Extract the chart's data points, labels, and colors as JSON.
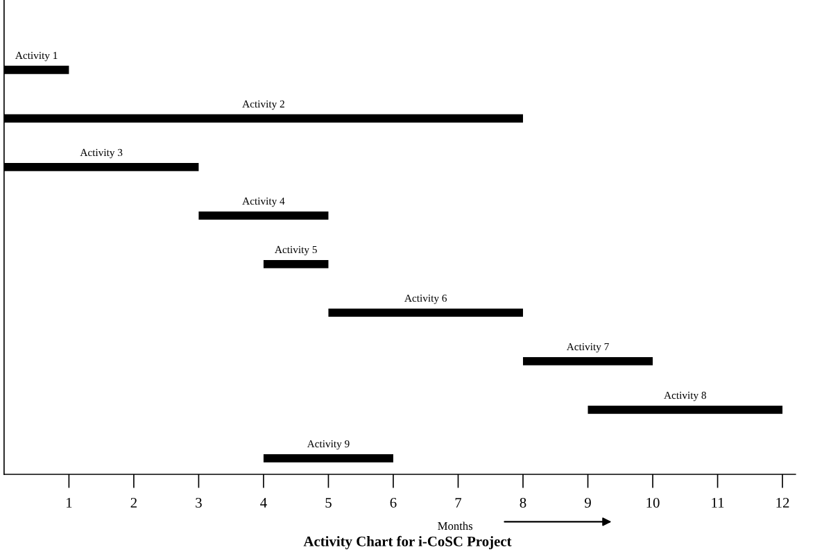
{
  "chart_data": {
    "type": "bar",
    "orientation": "horizontal",
    "title": "Activity Chart for i-CoSC Project",
    "xlabel": "Months",
    "categories": [
      "Activity 1",
      "Activity 2",
      "Activity 3",
      "Activity 4",
      "Activity 5",
      "Activity 6",
      "Activity 7",
      "Activity 8",
      "Activity 9"
    ],
    "base": [
      0,
      0,
      0,
      3,
      4,
      5,
      8,
      9,
      4
    ],
    "values": [
      1,
      8,
      3,
      2,
      1,
      3,
      2,
      3,
      2
    ],
    "color": "#000000",
    "xlim": [
      0,
      12.2
    ],
    "xticks": [
      1,
      2,
      3,
      4,
      5,
      6,
      7,
      8,
      9,
      10,
      11,
      12
    ],
    "grid": false,
    "legend": false
  }
}
